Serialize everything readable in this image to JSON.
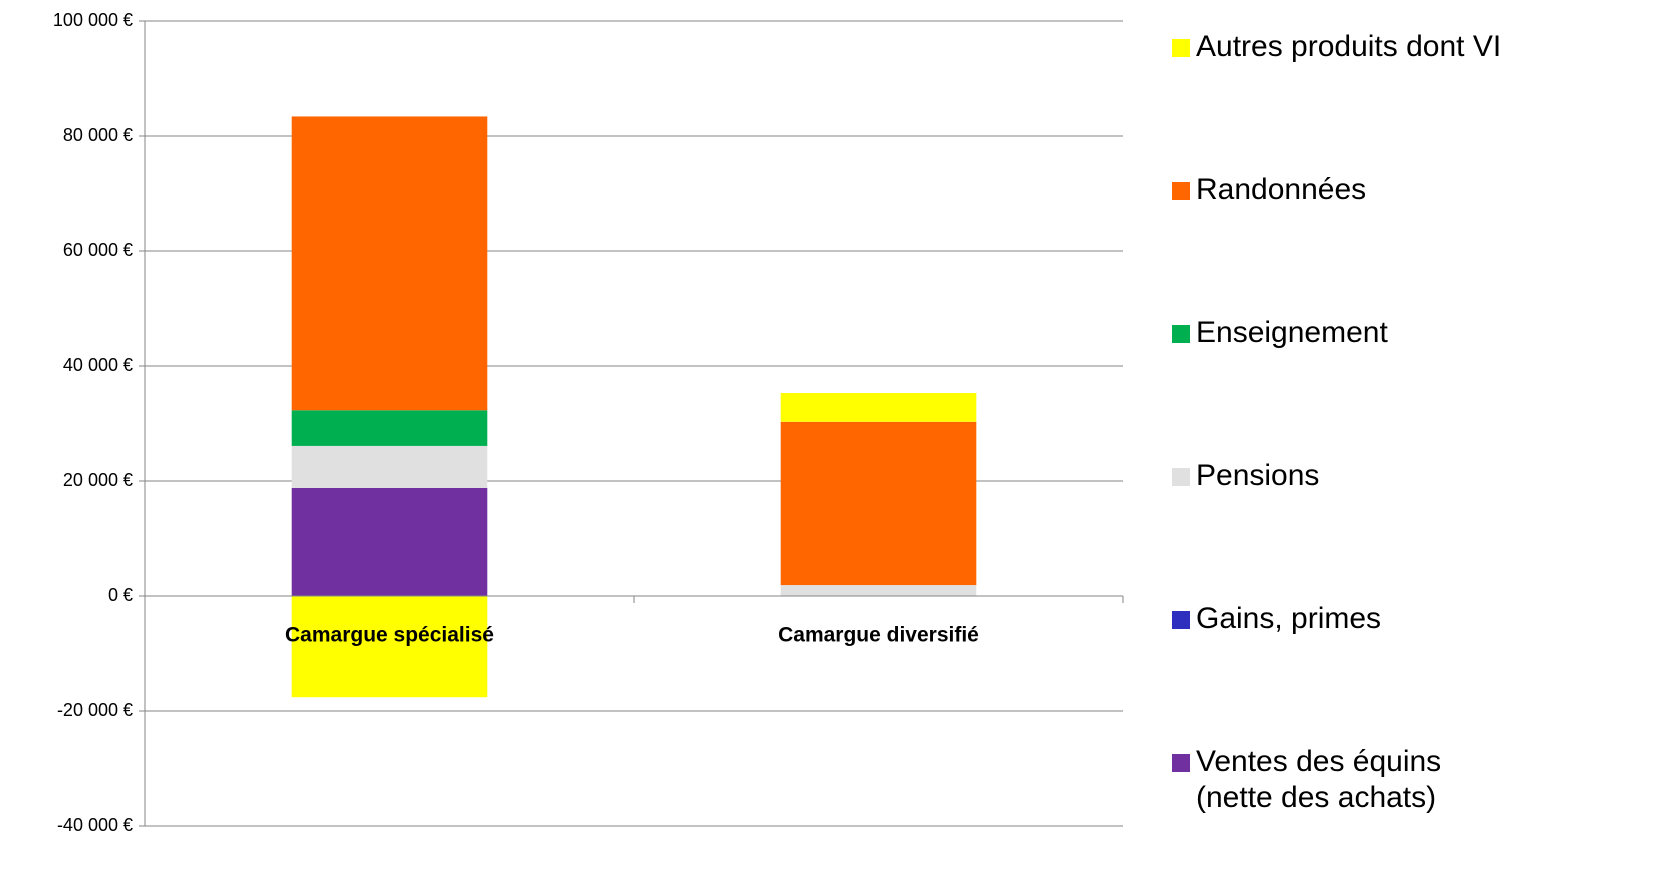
{
  "chart_data": {
    "type": "stacked_bar",
    "categories": [
      "Camargue spécialisé",
      "Camargue diversifié"
    ],
    "series": [
      {
        "name": "Ventes des équins\n(nette des achats)",
        "color": "#7030a0",
        "values": [
          18800,
          0
        ]
      },
      {
        "name": "Gains, primes",
        "color": "#2e2ebf",
        "values": [
          0,
          0
        ]
      },
      {
        "name": "Pensions",
        "color": "#e0e0e0",
        "values": [
          7300,
          1900
        ]
      },
      {
        "name": "Enseignement",
        "color": "#00b050",
        "values": [
          6200,
          0
        ]
      },
      {
        "name": "Randonnées",
        "color": "#ff6600",
        "values": [
          51100,
          28400
        ]
      },
      {
        "name": "Autres produits dont VI",
        "color": "#ffff00",
        "values": [
          -17600,
          5000
        ]
      }
    ],
    "ylim": [
      -40000,
      100000
    ],
    "yticks": [
      {
        "value": -40000,
        "label": "-40 000 €"
      },
      {
        "value": -20000,
        "label": "-20 000 €"
      },
      {
        "value": 0,
        "label": "0 €"
      },
      {
        "value": 20000,
        "label": "20 000 €"
      },
      {
        "value": 40000,
        "label": "40 000 €"
      },
      {
        "value": 60000,
        "label": "60 000 €"
      },
      {
        "value": 80000,
        "label": "80 000 €"
      },
      {
        "value": 100000,
        "label": "100 000 €"
      }
    ],
    "grid": true,
    "legend": "right"
  }
}
